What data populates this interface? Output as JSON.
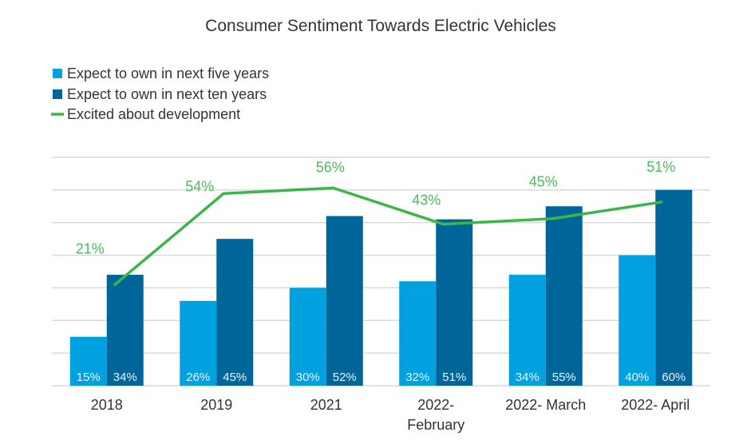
{
  "chart_data": {
    "type": "bar",
    "title": "Consumer Sentiment Towards Electric Vehicles",
    "xlabel": "",
    "ylabel": "",
    "categories": [
      [
        "2018"
      ],
      [
        "2019"
      ],
      [
        "2021"
      ],
      [
        "2022-",
        "February"
      ],
      [
        "2022- March"
      ],
      [
        "2022- April"
      ]
    ],
    "ylim": [
      0,
      70
    ],
    "y_grid_step": 10,
    "grid": true,
    "y_tick_labels_shown": false,
    "secondary_ylim": [
      -15,
      67
    ],
    "legend_position": "top-left",
    "series": [
      {
        "name": "Expect to own in next five years",
        "type": "bar",
        "color": "#00a1de",
        "label_color": "#e8f2fa",
        "values": [
          15,
          26,
          30,
          32,
          34,
          40
        ],
        "labels": [
          "15%",
          "26%",
          "30%",
          "32%",
          "34%",
          "40%"
        ]
      },
      {
        "name": "Expect to own in next ten years",
        "type": "bar",
        "color": "#006699",
        "label_color": "#e8f2fa",
        "values": [
          34,
          45,
          52,
          51,
          55,
          60
        ],
        "labels": [
          "34%",
          "45%",
          "52%",
          "51%",
          "55%",
          "60%"
        ]
      },
      {
        "name": "Excited about development",
        "type": "line",
        "axis": "secondary",
        "color": "#3cb54a",
        "label_color": "#4cbb5d",
        "values": [
          21,
          54,
          56,
          43,
          45,
          51
        ],
        "labels": [
          "21%",
          "54%",
          "56%",
          "43%",
          "45%",
          "51%"
        ]
      }
    ],
    "gridline_color": "#d9d9d9"
  }
}
